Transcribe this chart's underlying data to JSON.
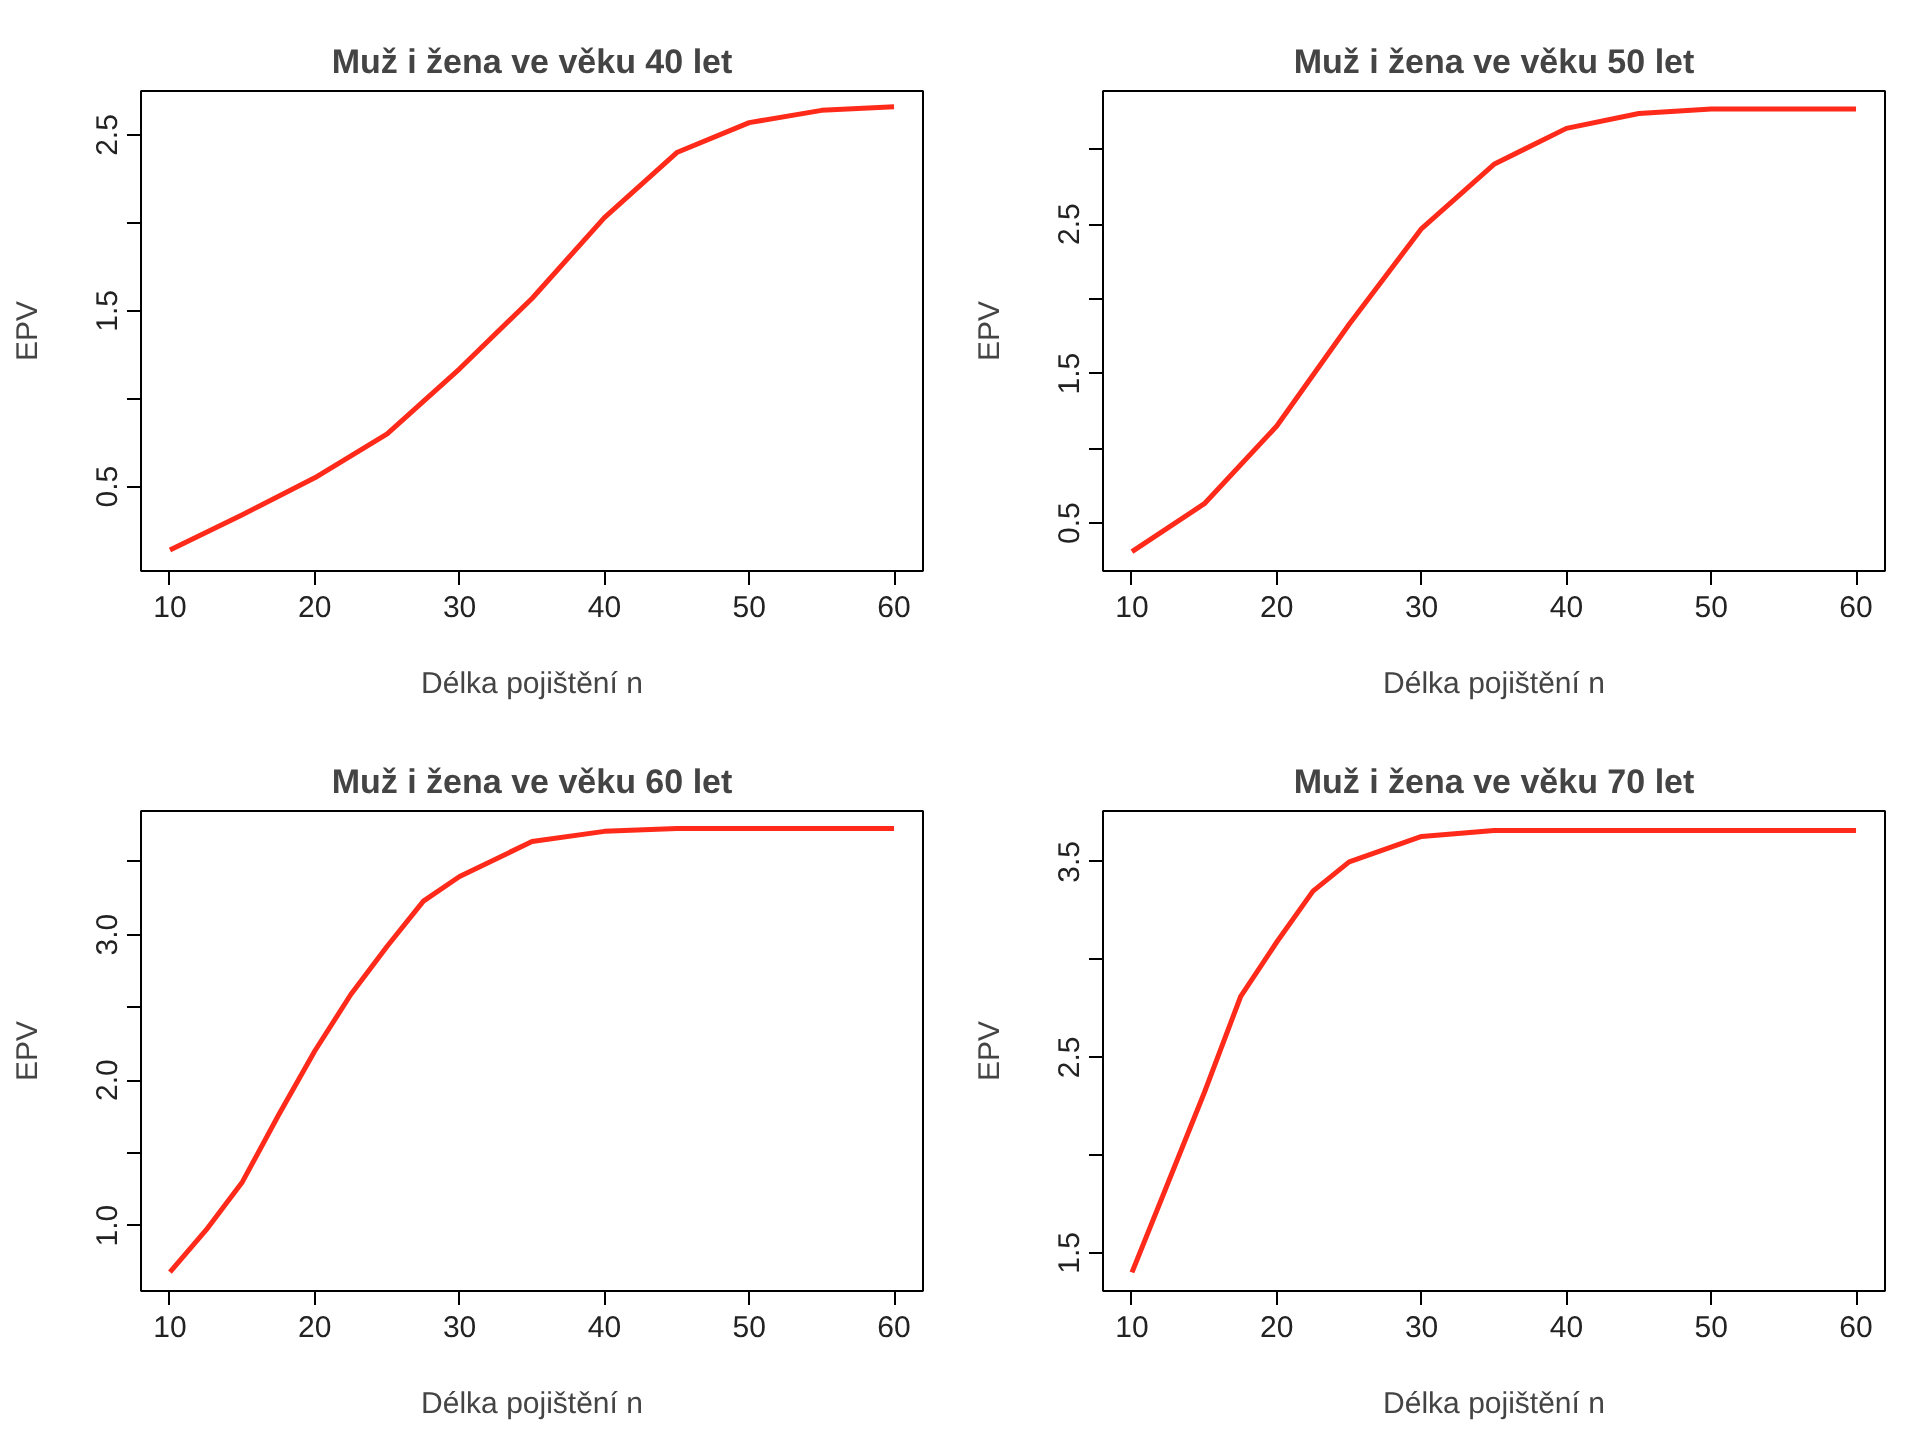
{
  "chart_data": [
    {
      "type": "line",
      "title": "Muž i žena ve věku 40 let",
      "xlabel": "Délka pojištění n",
      "ylabel": "EPV",
      "x": [
        10,
        15,
        20,
        25,
        30,
        35,
        40,
        45,
        50,
        55,
        60
      ],
      "series": [
        {
          "color": "#ff2a1a",
          "values": [
            0.14,
            0.34,
            0.55,
            0.8,
            1.17,
            1.57,
            2.03,
            2.4,
            2.57,
            2.64,
            2.66
          ]
        }
      ],
      "xlim": [
        8,
        62
      ],
      "ylim": [
        0.02,
        2.75
      ],
      "xticks": [
        10,
        20,
        30,
        40,
        50,
        60
      ],
      "yticks": [
        0.5,
        {
          "value": 1.0,
          "label": null
        },
        1.5,
        {
          "value": 2.0,
          "label": null
        },
        2.5
      ],
      "grid": false,
      "line_style": "solid"
    },
    {
      "type": "line",
      "title": "Muž i žena ve věku 50 let",
      "xlabel": "Délka pojištění n",
      "ylabel": "EPV",
      "x": [
        10,
        15,
        20,
        25,
        30,
        35,
        40,
        45,
        50,
        55,
        60
      ],
      "series": [
        {
          "color": "#ff2a1a",
          "values": [
            0.31,
            0.63,
            1.15,
            1.83,
            2.47,
            2.9,
            3.14,
            3.24,
            3.27,
            3.27,
            3.27
          ]
        }
      ],
      "xlim": [
        8,
        62
      ],
      "ylim": [
        0.18,
        3.39
      ],
      "xticks": [
        10,
        20,
        30,
        40,
        50,
        60
      ],
      "yticks": [
        0.5,
        {
          "value": 1.0,
          "label": null
        },
        1.5,
        {
          "value": 2.0,
          "label": null
        },
        2.5,
        {
          "value": 3.0,
          "label": null
        }
      ],
      "grid": false,
      "line_style": "solid"
    },
    {
      "type": "line",
      "title": "Muž i žena ve věku 60 let",
      "xlabel": "Délka pojištění n",
      "ylabel": "EPV",
      "x": [
        10,
        12.5,
        15,
        17.5,
        20,
        22.5,
        25,
        27.5,
        30,
        35,
        40,
        45,
        50,
        55,
        60
      ],
      "series": [
        {
          "color": "#ff2a1a",
          "values": [
            0.68,
            0.97,
            1.3,
            1.76,
            2.2,
            2.59,
            2.92,
            3.23,
            3.4,
            3.64,
            3.71,
            3.73,
            3.73,
            3.73,
            3.73
          ]
        }
      ],
      "xlim": [
        8,
        62
      ],
      "ylim": [
        0.55,
        3.85
      ],
      "xticks": [
        10,
        20,
        30,
        40,
        50,
        60
      ],
      "yticks": [
        {
          "value": 1.0,
          "label": "1.0"
        },
        {
          "value": 1.5,
          "label": null
        },
        {
          "value": 2.0,
          "label": "2.0"
        },
        {
          "value": 2.5,
          "label": null
        },
        {
          "value": 3.0,
          "label": "3.0"
        },
        {
          "value": 3.5,
          "label": null
        }
      ],
      "grid": false,
      "line_style": "solid"
    },
    {
      "type": "line",
      "title": "Muž i žena ve věku 70 let",
      "xlabel": "Délka pojištění n",
      "ylabel": "EPV",
      "x": [
        10,
        12.5,
        15,
        17.5,
        20,
        22.5,
        25,
        30,
        35,
        40,
        45,
        50,
        55,
        60
      ],
      "series": [
        {
          "color": "#ff2a1a",
          "values": [
            1.4,
            1.86,
            2.32,
            2.81,
            3.09,
            3.35,
            3.5,
            3.63,
            3.66,
            3.66,
            3.66,
            3.66,
            3.66,
            3.66
          ]
        }
      ],
      "xlim": [
        8,
        62
      ],
      "ylim": [
        1.305,
        3.76
      ],
      "xticks": [
        10,
        20,
        30,
        40,
        50,
        60
      ],
      "yticks": [
        1.5,
        {
          "value": 2.0,
          "label": null
        },
        2.5,
        {
          "value": 3.0,
          "label": null
        },
        3.5
      ],
      "grid": false,
      "line_style": "solid"
    }
  ]
}
